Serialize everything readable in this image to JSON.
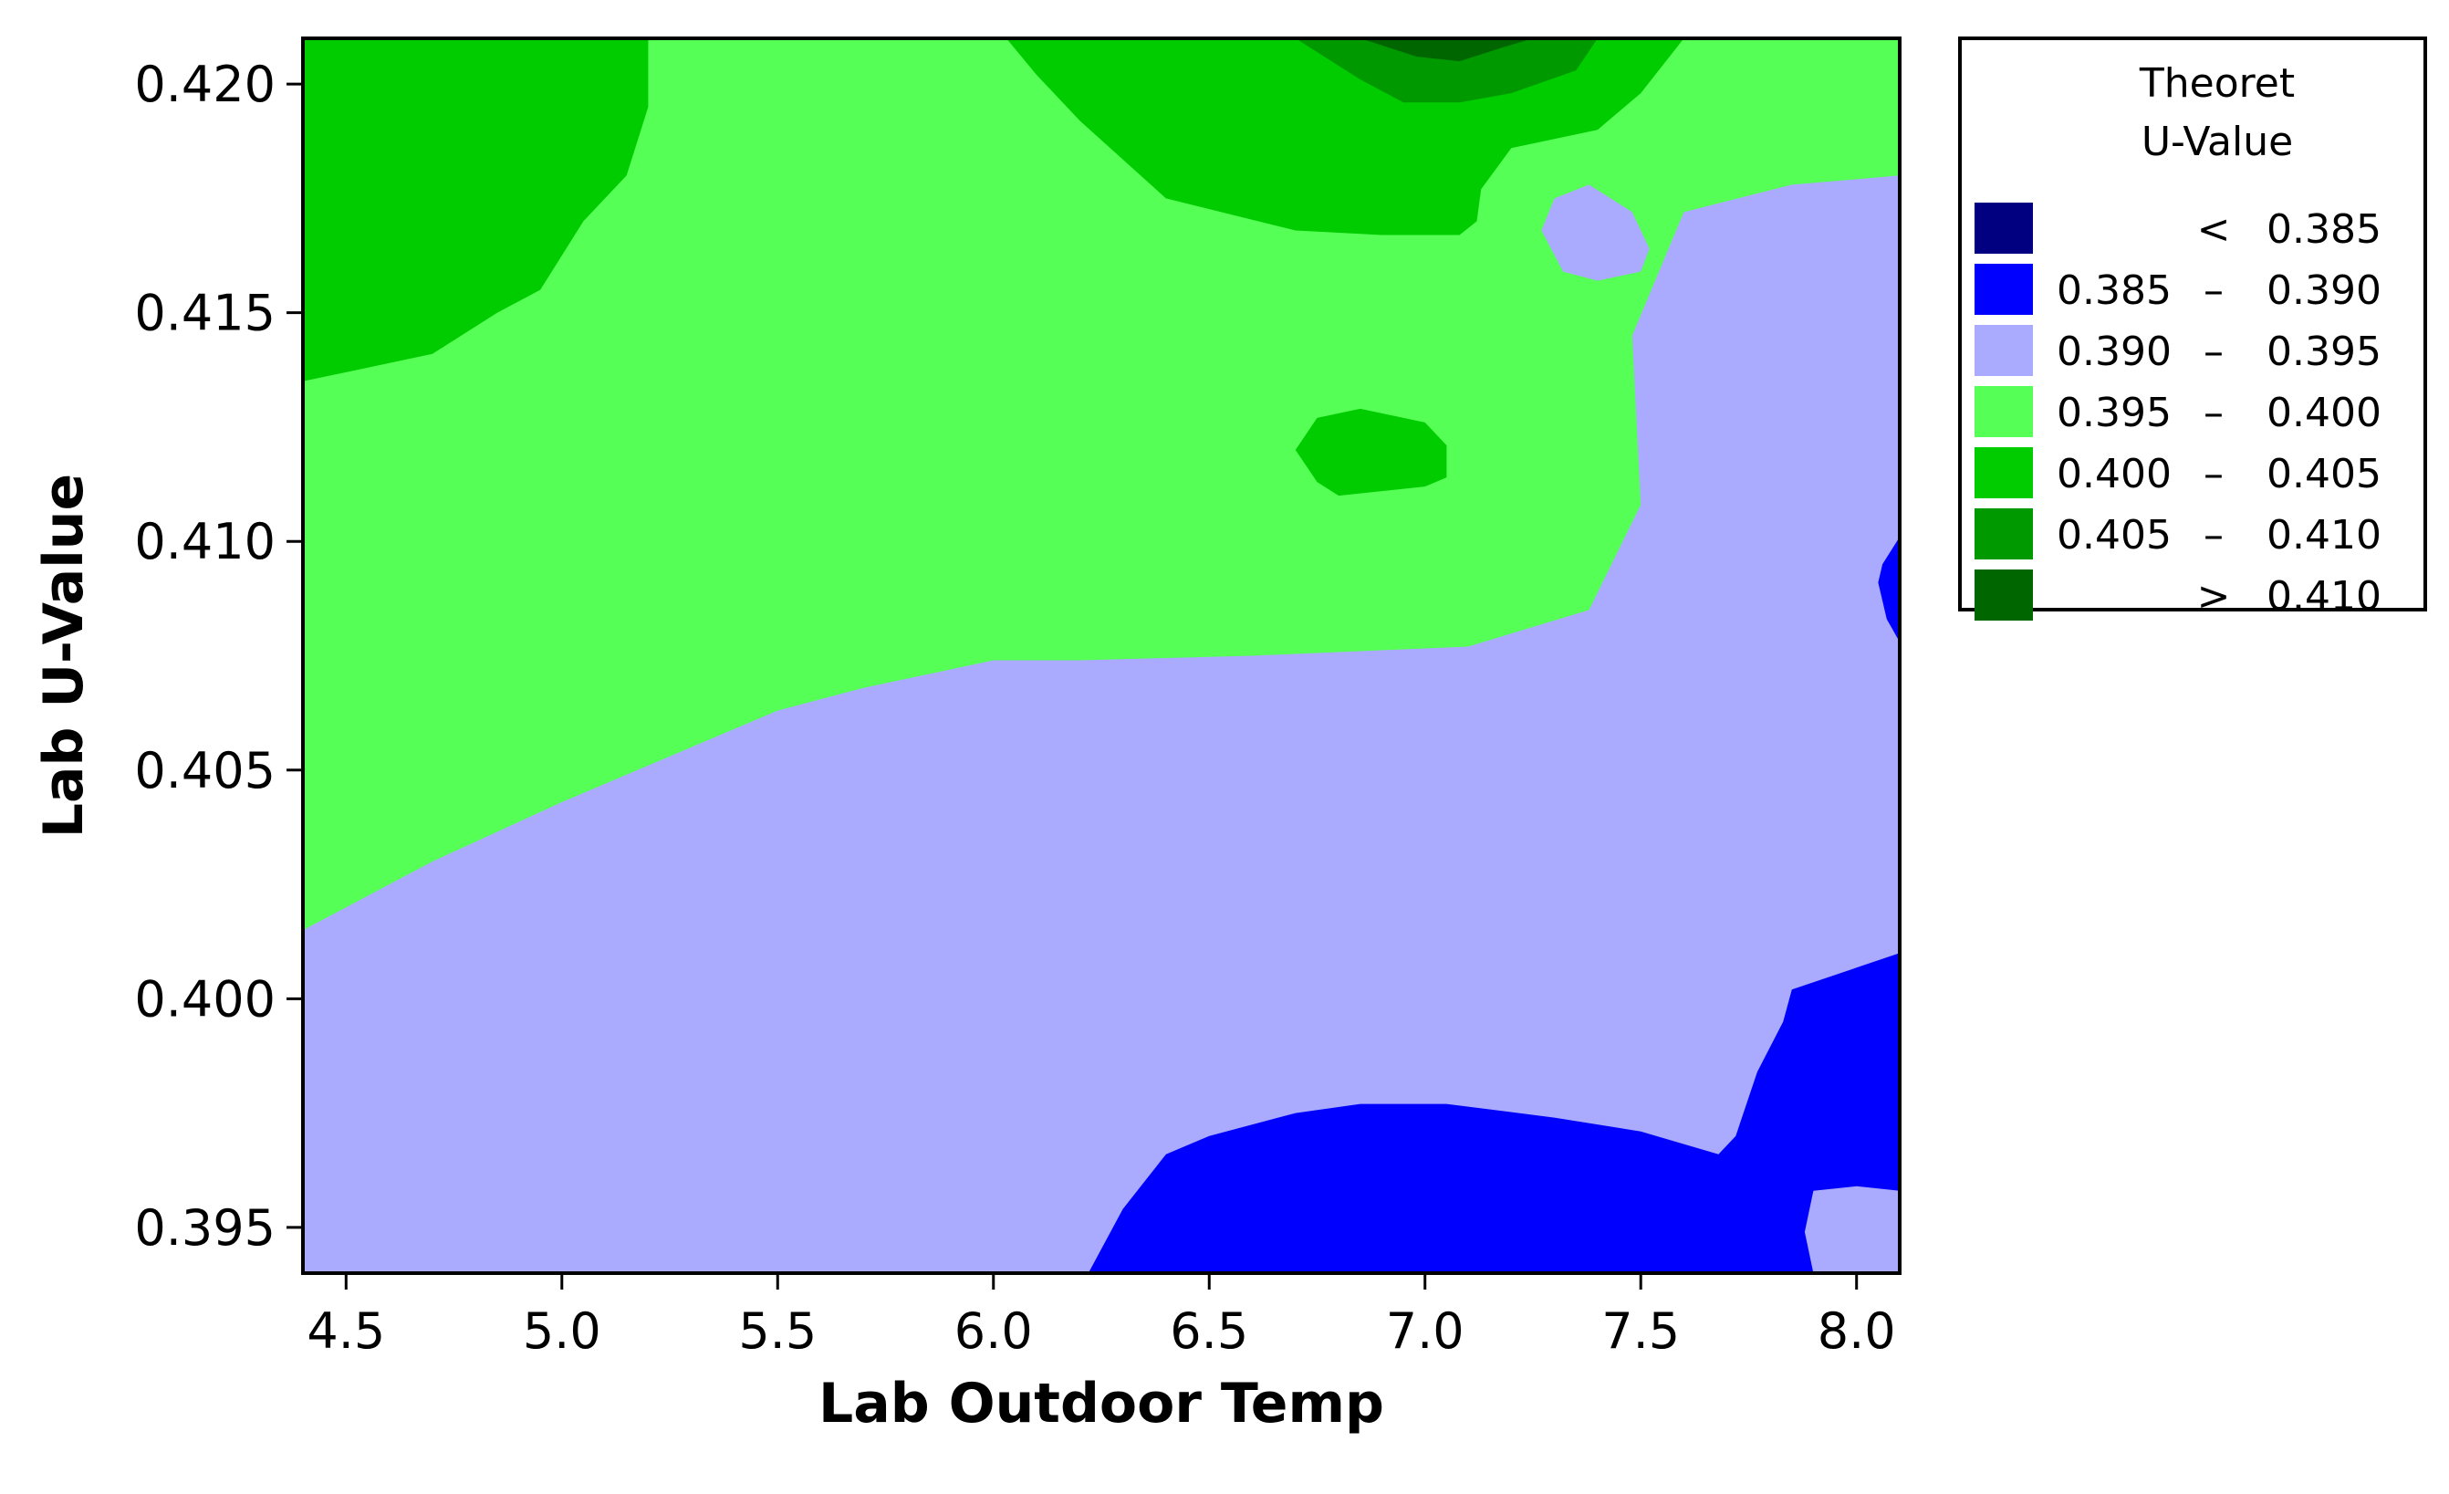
{
  "chart_data": {
    "type": "contour",
    "xlabel": "Lab Outdoor Temp",
    "ylabel": "Lab U-Value",
    "xlim": [
      4.4,
      8.1
    ],
    "ylim": [
      0.394,
      0.421
    ],
    "x_ticks": [
      "4.5",
      "5.0",
      "5.5",
      "6.0",
      "6.5",
      "7.0",
      "7.5",
      "8.0"
    ],
    "x_tick_values": [
      4.5,
      5.0,
      5.5,
      6.0,
      6.5,
      7.0,
      7.5,
      8.0
    ],
    "y_ticks": [
      "0.395",
      "0.400",
      "0.405",
      "0.410",
      "0.415",
      "0.420"
    ],
    "y_tick_values": [
      0.395,
      0.4,
      0.405,
      0.41,
      0.415,
      0.42
    ],
    "legend": {
      "title_line1": "Theoret",
      "title_line2": "U-Value",
      "placement": "right",
      "levels": [
        {
          "low": "",
          "symbol": "<",
          "high": "0.385",
          "color": "#000080"
        },
        {
          "low": "0.385",
          "symbol": "–",
          "high": "0.390",
          "color": "#0000FF"
        },
        {
          "low": "0.390",
          "symbol": "–",
          "high": "0.395",
          "color": "#AAAAFF"
        },
        {
          "low": "0.395",
          "symbol": "–",
          "high": "0.400",
          "color": "#55FF55"
        },
        {
          "low": "0.400",
          "symbol": "–",
          "high": "0.405",
          "color": "#00CC00"
        },
        {
          "low": "0.405",
          "symbol": "–",
          "high": "0.410",
          "color": "#009900"
        },
        {
          "low": "",
          "symbol": ">",
          "high": "0.410",
          "color": "#006600"
        }
      ]
    },
    "regions": [
      {
        "level": "0.395 – 0.400",
        "color": "#55FF55",
        "points": [
          [
            4.4,
            0.421
          ],
          [
            8.1,
            0.421
          ],
          [
            8.1,
            0.418
          ],
          [
            7.85,
            0.4178
          ],
          [
            7.6,
            0.4172
          ],
          [
            7.48,
            0.4145
          ],
          [
            7.5,
            0.4108
          ],
          [
            7.38,
            0.4085
          ],
          [
            7.1,
            0.4077
          ],
          [
            6.6,
            0.4075
          ],
          [
            6.2,
            0.4074
          ],
          [
            6.0,
            0.4074
          ],
          [
            5.7,
            0.4068
          ],
          [
            5.5,
            0.4063
          ],
          [
            5.2,
            0.4051
          ],
          [
            5.0,
            0.4043
          ],
          [
            4.7,
            0.403
          ],
          [
            4.4,
            0.4015
          ]
        ]
      },
      {
        "level": "0.400 – 0.405",
        "color": "#00CC00",
        "points": [
          [
            4.4,
            0.421
          ],
          [
            5.2,
            0.421
          ],
          [
            5.2,
            0.4195
          ],
          [
            5.15,
            0.418
          ],
          [
            5.05,
            0.417
          ],
          [
            4.95,
            0.4155
          ],
          [
            4.85,
            0.415
          ],
          [
            4.7,
            0.4141
          ],
          [
            4.4,
            0.4135
          ]
        ]
      },
      {
        "level": "0.400 – 0.405",
        "color": "#00CC00",
        "points": [
          [
            6.03,
            0.421
          ],
          [
            7.6,
            0.421
          ],
          [
            7.5,
            0.4198
          ],
          [
            7.4,
            0.419
          ],
          [
            7.2,
            0.4186
          ],
          [
            7.13,
            0.4177
          ],
          [
            7.12,
            0.417
          ],
          [
            7.08,
            0.4167
          ],
          [
            6.9,
            0.4167
          ],
          [
            6.7,
            0.4168
          ],
          [
            6.4,
            0.4175
          ],
          [
            6.2,
            0.4192
          ],
          [
            6.1,
            0.4202
          ]
        ]
      },
      {
        "level": "0.400 – 0.405",
        "color": "#00CC00",
        "points": [
          [
            6.7,
            0.412
          ],
          [
            6.75,
            0.4127
          ],
          [
            6.85,
            0.4129
          ],
          [
            7.0,
            0.4126
          ],
          [
            7.05,
            0.4121
          ],
          [
            7.05,
            0.4114
          ],
          [
            7.0,
            0.4112
          ],
          [
            6.8,
            0.411
          ],
          [
            6.75,
            0.4113
          ]
        ]
      },
      {
        "level": "0.405 – 0.410",
        "color": "#009900",
        "points": [
          [
            6.7,
            0.421
          ],
          [
            7.4,
            0.421
          ],
          [
            7.35,
            0.4203
          ],
          [
            7.2,
            0.4198
          ],
          [
            7.08,
            0.4196
          ],
          [
            6.95,
            0.4196
          ],
          [
            6.85,
            0.4201
          ]
        ]
      },
      {
        "level": "> 0.410",
        "color": "#006600",
        "points": [
          [
            6.85,
            0.421
          ],
          [
            7.25,
            0.421
          ],
          [
            7.18,
            0.4208
          ],
          [
            7.08,
            0.4205
          ],
          [
            6.98,
            0.4206
          ]
        ]
      },
      {
        "level": "0.390 – 0.395",
        "color": "#AAAAFF",
        "points": [
          [
            7.27,
            0.4168
          ],
          [
            7.3,
            0.4175
          ],
          [
            7.38,
            0.4178
          ],
          [
            7.48,
            0.4172
          ],
          [
            7.52,
            0.4164
          ],
          [
            7.5,
            0.4159
          ],
          [
            7.4,
            0.4157
          ],
          [
            7.32,
            0.4159
          ]
        ]
      },
      {
        "level": "0.385 – 0.390",
        "color": "#0000FF",
        "points": [
          [
            8.1,
            0.4101
          ],
          [
            8.1,
            0.4078
          ],
          [
            8.07,
            0.4083
          ],
          [
            8.05,
            0.4091
          ],
          [
            8.06,
            0.4095
          ]
        ]
      },
      {
        "level": "0.385 – 0.390",
        "color": "#0000FF",
        "points": [
          [
            6.22,
            0.394
          ],
          [
            6.3,
            0.3954
          ],
          [
            6.4,
            0.3966
          ],
          [
            6.5,
            0.397
          ],
          [
            6.7,
            0.3975
          ],
          [
            6.85,
            0.3977
          ],
          [
            7.05,
            0.3977
          ],
          [
            7.3,
            0.3974
          ],
          [
            7.5,
            0.3971
          ],
          [
            7.68,
            0.3966
          ],
          [
            7.72,
            0.397
          ],
          [
            7.77,
            0.3984
          ],
          [
            7.83,
            0.3995
          ],
          [
            7.85,
            0.4002
          ],
          [
            8.1,
            0.401
          ],
          [
            8.1,
            0.3958
          ],
          [
            8.0,
            0.3959
          ],
          [
            7.9,
            0.3958
          ],
          [
            7.88,
            0.3949
          ],
          [
            7.9,
            0.394
          ]
        ]
      }
    ]
  }
}
